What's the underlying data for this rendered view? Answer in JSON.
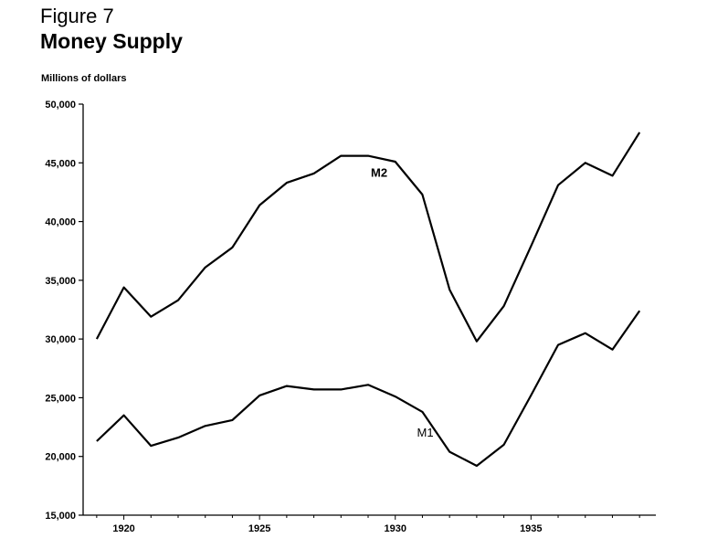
{
  "figure": {
    "label": "Figure 7",
    "title": "Money Supply",
    "y_unit": "Millions of dollars"
  },
  "chart_data": {
    "type": "line",
    "title": "Money Supply",
    "xlabel": "",
    "ylabel": "Millions of dollars",
    "x": [
      1919,
      1920,
      1921,
      1922,
      1923,
      1924,
      1925,
      1926,
      1927,
      1928,
      1929,
      1930,
      1931,
      1932,
      1933,
      1934,
      1935,
      1936,
      1937,
      1938,
      1939
    ],
    "xlim": [
      1918.5,
      1939.6
    ],
    "ylim": [
      15000,
      50000
    ],
    "x_ticks": [
      1920,
      1925,
      1930,
      1935
    ],
    "x_tick_labels": [
      "1920",
      "1925",
      "1930",
      "1935"
    ],
    "y_ticks": [
      15000,
      20000,
      25000,
      30000,
      35000,
      40000,
      45000,
      50000
    ],
    "y_tick_labels": [
      "15,000",
      "20,000",
      "25,000",
      "30,000",
      "35,000",
      "40,000",
      "45,000",
      "50,000"
    ],
    "grid": false,
    "legend": "none",
    "series": [
      {
        "name": "M2",
        "label_at": {
          "x": 1929.1,
          "y": 43800
        },
        "label_bold": true,
        "values": [
          30000,
          34400,
          31900,
          33300,
          36100,
          37800,
          41400,
          43300,
          44100,
          45600,
          45600,
          45100,
          42300,
          34200,
          29800,
          32800,
          37900,
          43100,
          45000,
          43900,
          47600
        ]
      },
      {
        "name": "M1",
        "label_at": {
          "x": 1930.8,
          "y": 21700
        },
        "label_bold": false,
        "values": [
          21300,
          23500,
          20900,
          21600,
          22600,
          23100,
          25200,
          26000,
          25700,
          25700,
          26100,
          25100,
          23800,
          20400,
          19200,
          21000,
          25200,
          29500,
          30500,
          29100,
          32400
        ]
      }
    ]
  }
}
